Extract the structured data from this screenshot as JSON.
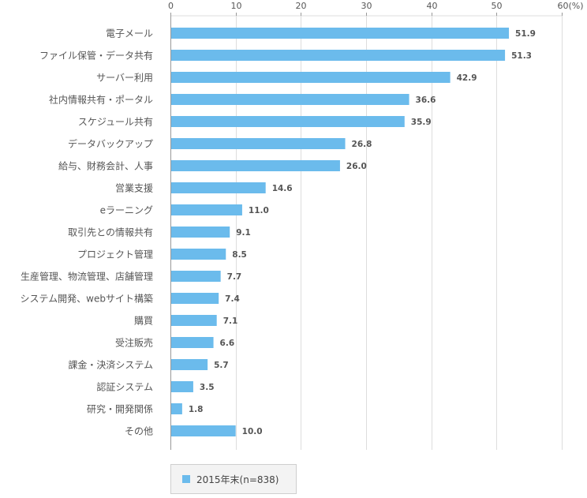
{
  "chart_data": {
    "type": "bar",
    "orientation": "horizontal",
    "categories": [
      "電子メール",
      "ファイル保管・データ共有",
      "サーバー利用",
      "社内情報共有・ポータル",
      "スケジュール共有",
      "データバックアップ",
      "給与、財務会計、人事",
      "営業支援",
      "eラーニング",
      "取引先との情報共有",
      "プロジェクト管理",
      "生産管理、物流管理、店舗管理",
      "システム開発、webサイト構築",
      "購買",
      "受注販売",
      "課金・決済システム",
      "認証システム",
      "研究・開発関係",
      "その他"
    ],
    "series": [
      {
        "name": "2015年末(n=838)",
        "values": [
          51.9,
          51.3,
          42.9,
          36.6,
          35.9,
          26.8,
          26.0,
          14.6,
          11.0,
          9.1,
          8.5,
          7.7,
          7.4,
          7.1,
          6.6,
          5.7,
          3.5,
          1.8,
          10.0
        ],
        "value_labels": [
          "51.9",
          "51.3",
          "42.9",
          "36.6",
          "35.9",
          "26.8",
          "26.0",
          "14.6",
          "11.0",
          "9.1",
          "8.5",
          "7.7",
          "7.4",
          "7.1",
          "6.6",
          "5.7",
          "3.5",
          "1.8",
          "10.0"
        ]
      }
    ],
    "xlim": [
      0,
      60
    ],
    "xticks": [
      0,
      10,
      20,
      30,
      40,
      50,
      60
    ],
    "xtick_labels": [
      "0",
      "10",
      "20",
      "30",
      "40",
      "50",
      "60(%)"
    ],
    "xaxis_position": "top",
    "grid": true,
    "legend": "bottom-left"
  },
  "legend": {
    "label": "2015年末(n=838)"
  },
  "colors": {
    "bar": "#6bbbec",
    "grid": "#dddddd",
    "axis": "#999999",
    "text": "#555555",
    "value_label": "#555555"
  }
}
